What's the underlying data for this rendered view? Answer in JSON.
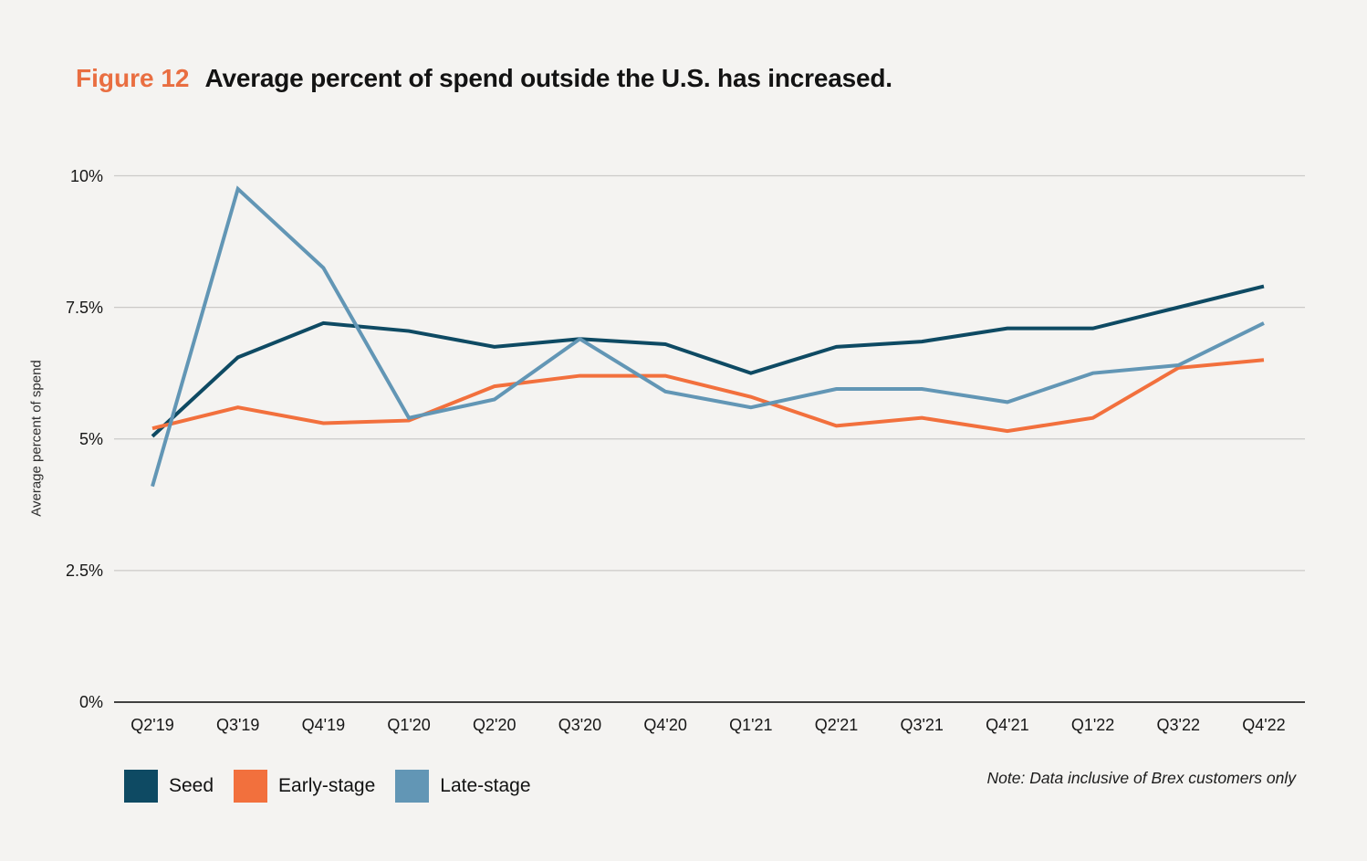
{
  "figure_label": "Figure 12",
  "title": "Average percent of spend outside the U.S. has increased.",
  "note": "Note: Data inclusive of Brex customers only",
  "colors": {
    "background": "#F4F3F1",
    "figure_label": "#E96E41",
    "seed": "#0E4A63",
    "early": "#F2703D",
    "late": "#6296B5",
    "gridline": "#CBCAC8",
    "axis_line": "#414141"
  },
  "chart_data": {
    "type": "line",
    "title": "Average percent of spend outside the U.S. has increased.",
    "xlabel": "",
    "ylabel": "Average percent of spend",
    "ylim": [
      0,
      10
    ],
    "grid": "horizontal",
    "legend_position": "bottom-left",
    "categories": [
      "Q2'19",
      "Q3'19",
      "Q4'19",
      "Q1'20",
      "Q2'20",
      "Q3'20",
      "Q4'20",
      "Q1'21",
      "Q2'21",
      "Q3'21",
      "Q4'21",
      "Q1'22",
      "Q3'22",
      "Q4'22"
    ],
    "yticks": [
      {
        "value": 0,
        "label": "0%"
      },
      {
        "value": 2.5,
        "label": "2.5%"
      },
      {
        "value": 5,
        "label": "5%"
      },
      {
        "value": 7.5,
        "label": "7.5%"
      },
      {
        "value": 10,
        "label": "10%"
      }
    ],
    "series": [
      {
        "name": "Seed",
        "color_key": "seed",
        "values": [
          5.05,
          6.55,
          7.2,
          7.05,
          6.75,
          6.9,
          6.8,
          6.25,
          6.75,
          6.85,
          7.1,
          7.1,
          7.5,
          7.9
        ]
      },
      {
        "name": "Early-stage",
        "color_key": "early",
        "values": [
          5.2,
          5.6,
          5.3,
          5.35,
          6.0,
          6.2,
          6.2,
          5.8,
          5.25,
          5.4,
          5.15,
          5.4,
          6.35,
          6.5
        ]
      },
      {
        "name": "Late-stage",
        "color_key": "late",
        "values": [
          4.1,
          9.75,
          8.25,
          5.4,
          5.75,
          6.9,
          5.9,
          5.6,
          5.95,
          5.95,
          5.7,
          6.25,
          6.4,
          7.2
        ]
      }
    ]
  }
}
